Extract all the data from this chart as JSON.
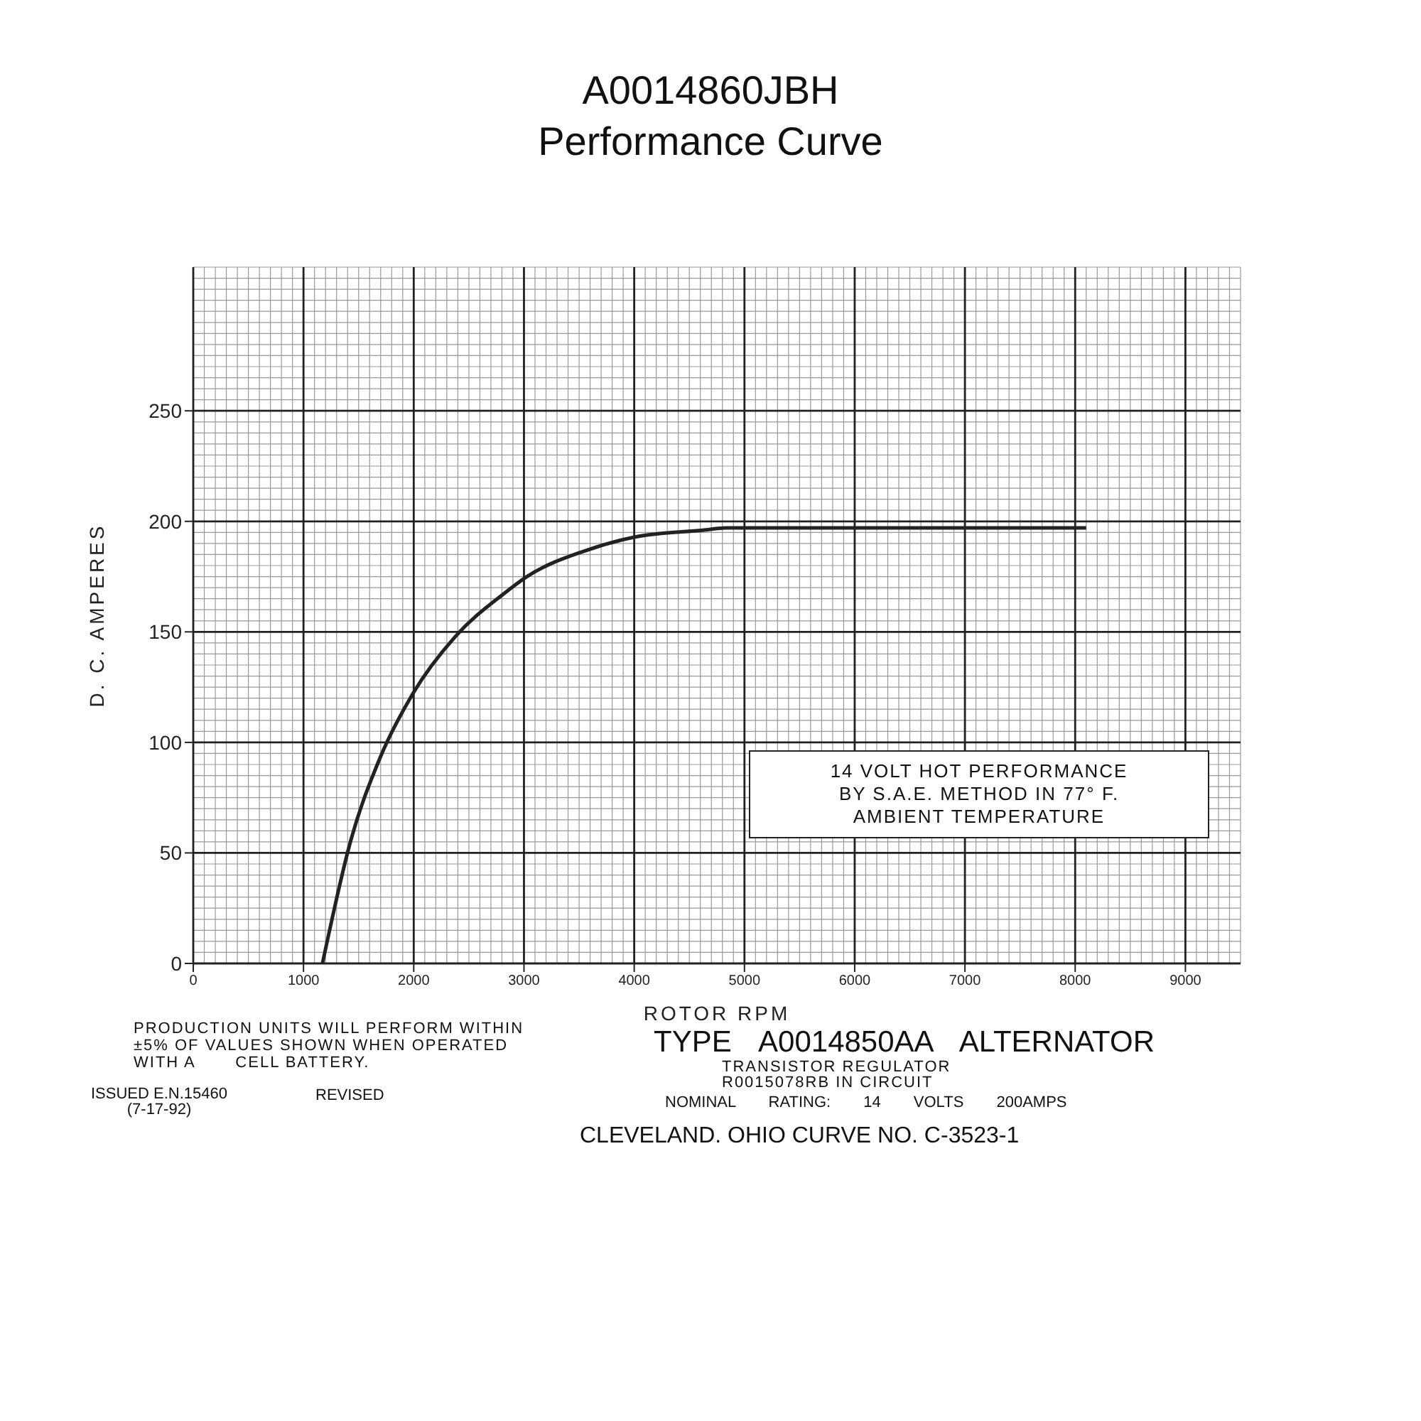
{
  "chart_data": {
    "type": "line",
    "title": "A0014860JBH",
    "subtitle": "Performance Curve",
    "xlabel": "ROTOR RPM",
    "ylabel": "D. C. AMPERES",
    "series": [
      {
        "color": "#222222",
        "x": [
          1172,
          1431,
          1690,
          1991,
          2379,
          2810,
          3026,
          3543,
          4017,
          4621,
          4836,
          8100
        ],
        "values": [
          0,
          56,
          92.5,
          122,
          148,
          167,
          175,
          186.5,
          193,
          196,
          197,
          197
        ]
      }
    ],
    "xlim": [
      0,
      9500
    ],
    "xticks": [
      0,
      1000,
      2000,
      3000,
      4000,
      5000,
      6000,
      7000,
      8000,
      9000
    ],
    "ylim": [
      0,
      315
    ],
    "yticks": [
      0,
      50,
      100,
      150,
      200,
      250
    ],
    "grid": true,
    "marker": "none",
    "line_style": "solid",
    "annotations": [
      "14 VOLT HOT PERFORMANCE\nBY S.A.E. METHOD IN 77° F.\nAMBIENT TEMPERATURE",
      "PRODUCTION UNITS WILL PERFORM WITHIN\n±5% OF VALUES SHOWN WHEN OPERATED\nWITH A       CELL BATTERY.",
      "ISSUED E.N.15460\n(7-17-92)",
      "REVISED",
      "TYPE A0014850AA ALTERNATOR",
      "TRANSISTOR REGULATOR\nR0015078RB IN CIRCUIT",
      "NOMINAL RATING: 14 VOLTS 200AMPS",
      "CLEVELAND. OHIO CURVE NO. C-3523-1"
    ]
  }
}
